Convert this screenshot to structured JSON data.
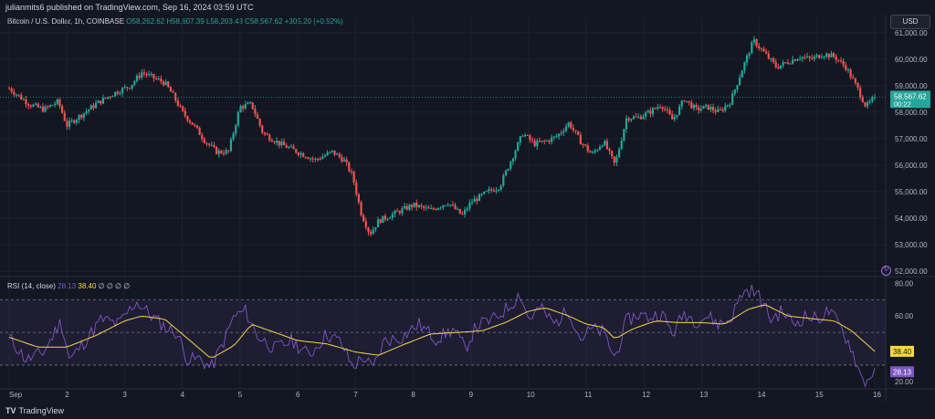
{
  "header": {
    "published": "julianmits6 published on TradingView.com, Sep 16, 2024 03:59 UTC",
    "symbol": "Bitcoin / U.S. Dollar, 1h, COINBASE",
    "ohlc": "O58,262.62  H58,607.39  L58,203.43  C58,567.62  +305.20 (+0.52%)",
    "currency_button": "USD"
  },
  "rsi": {
    "label": "RSI (14, close)",
    "rsi_value": "28.13",
    "ma_value": "38.40",
    "icons": "∅ ∅ ∅ ∅"
  },
  "footer": {
    "brand": "TradingView",
    "brand_icon": "tv-logo-icon"
  },
  "colors": {
    "up": "#26a69a",
    "down": "#ef5350",
    "background": "#131722",
    "rsi_line": "#7e57c2",
    "rsi_ma": "#f7d64a",
    "grid": "#1e222d"
  },
  "chart_data": [
    {
      "type": "candlestick",
      "title": "Bitcoin / U.S. Dollar, 1h, COINBASE",
      "x_tick_labels": [
        "Sep",
        "2",
        "3",
        "4",
        "5",
        "6",
        "7",
        "8",
        "9",
        "10",
        "11",
        "12",
        "13",
        "14",
        "15",
        "16"
      ],
      "y_tick_labels": [
        "61,000.00",
        "60,000.00",
        "59,000.00",
        "58,000.00",
        "57,000.00",
        "56,000.00",
        "55,000.00",
        "54,000.00",
        "53,000.00",
        "52,000.00"
      ],
      "ylim": [
        51900,
        61200
      ],
      "last_price_label": "58,567.62",
      "countdown_label": "00:22",
      "last_price": 58567.62,
      "close_path": [
        {
          "day": 0.0,
          "price": 58900
        },
        {
          "day": 0.35,
          "price": 58300
        },
        {
          "day": 0.6,
          "price": 58100
        },
        {
          "day": 0.85,
          "price": 58400
        },
        {
          "day": 1.0,
          "price": 57500
        },
        {
          "day": 1.25,
          "price": 57900
        },
        {
          "day": 1.5,
          "price": 58300
        },
        {
          "day": 1.8,
          "price": 58700
        },
        {
          "day": 2.1,
          "price": 59000
        },
        {
          "day": 2.3,
          "price": 59500
        },
        {
          "day": 2.5,
          "price": 59300
        },
        {
          "day": 2.7,
          "price": 59100
        },
        {
          "day": 2.85,
          "price": 58600
        },
        {
          "day": 3.0,
          "price": 58000
        },
        {
          "day": 3.2,
          "price": 57500
        },
        {
          "day": 3.4,
          "price": 56900
        },
        {
          "day": 3.6,
          "price": 56500
        },
        {
          "day": 3.8,
          "price": 56500
        },
        {
          "day": 4.0,
          "price": 58200
        },
        {
          "day": 4.2,
          "price": 58300
        },
        {
          "day": 4.4,
          "price": 57200
        },
        {
          "day": 4.7,
          "price": 56800
        },
        {
          "day": 5.0,
          "price": 56500
        },
        {
          "day": 5.3,
          "price": 56200
        },
        {
          "day": 5.6,
          "price": 56500
        },
        {
          "day": 5.8,
          "price": 56200
        },
        {
          "day": 5.95,
          "price": 55600
        },
        {
          "day": 6.1,
          "price": 54200
        },
        {
          "day": 6.25,
          "price": 53400
        },
        {
          "day": 6.4,
          "price": 53900
        },
        {
          "day": 6.6,
          "price": 54100
        },
        {
          "day": 6.8,
          "price": 54300
        },
        {
          "day": 7.0,
          "price": 54500
        },
        {
          "day": 7.3,
          "price": 54300
        },
        {
          "day": 7.6,
          "price": 54600
        },
        {
          "day": 7.85,
          "price": 54100
        },
        {
          "day": 8.0,
          "price": 54600
        },
        {
          "day": 8.3,
          "price": 55000
        },
        {
          "day": 8.5,
          "price": 55200
        },
        {
          "day": 8.7,
          "price": 56200
        },
        {
          "day": 8.9,
          "price": 57200
        },
        {
          "day": 9.1,
          "price": 56800
        },
        {
          "day": 9.3,
          "price": 56900
        },
        {
          "day": 9.5,
          "price": 57100
        },
        {
          "day": 9.7,
          "price": 57600
        },
        {
          "day": 9.9,
          "price": 56900
        },
        {
          "day": 10.1,
          "price": 56400
        },
        {
          "day": 10.3,
          "price": 56900
        },
        {
          "day": 10.5,
          "price": 56000
        },
        {
          "day": 10.7,
          "price": 57800
        },
        {
          "day": 10.9,
          "price": 57800
        },
        {
          "day": 11.1,
          "price": 58000
        },
        {
          "day": 11.3,
          "price": 58300
        },
        {
          "day": 11.5,
          "price": 57700
        },
        {
          "day": 11.7,
          "price": 58500
        },
        {
          "day": 11.9,
          "price": 58100
        },
        {
          "day": 12.1,
          "price": 58200
        },
        {
          "day": 12.3,
          "price": 58000
        },
        {
          "day": 12.5,
          "price": 58400
        },
        {
          "day": 12.7,
          "price": 59600
        },
        {
          "day": 12.9,
          "price": 60700
        },
        {
          "day": 13.1,
          "price": 60200
        },
        {
          "day": 13.3,
          "price": 59700
        },
        {
          "day": 13.5,
          "price": 59900
        },
        {
          "day": 13.7,
          "price": 60100
        },
        {
          "day": 13.9,
          "price": 60000
        },
        {
          "day": 14.1,
          "price": 60200
        },
        {
          "day": 14.3,
          "price": 60100
        },
        {
          "day": 14.5,
          "price": 59700
        },
        {
          "day": 14.7,
          "price": 58900
        },
        {
          "day": 14.85,
          "price": 58200
        },
        {
          "day": 15.0,
          "price": 58567.62
        }
      ]
    },
    {
      "type": "line",
      "title": "RSI (14, close)",
      "y_tick_labels": [
        "80.00",
        "60.00",
        "40.00",
        "20.00"
      ],
      "ylim": [
        16,
        83
      ],
      "upper_band": 70,
      "middle_band": 50,
      "lower_band": 30,
      "series": [
        {
          "name": "RSI",
          "points": [
            {
              "day": 0.0,
              "value": 47
            },
            {
              "day": 0.3,
              "value": 33
            },
            {
              "day": 0.6,
              "value": 38
            },
            {
              "day": 0.9,
              "value": 57
            },
            {
              "day": 1.05,
              "value": 33
            },
            {
              "day": 1.3,
              "value": 44
            },
            {
              "day": 1.6,
              "value": 58
            },
            {
              "day": 1.9,
              "value": 55
            },
            {
              "day": 2.2,
              "value": 69
            },
            {
              "day": 2.5,
              "value": 59
            },
            {
              "day": 2.75,
              "value": 52
            },
            {
              "day": 2.9,
              "value": 50
            },
            {
              "day": 3.1,
              "value": 33
            },
            {
              "day": 3.3,
              "value": 34
            },
            {
              "day": 3.5,
              "value": 28
            },
            {
              "day": 3.7,
              "value": 43
            },
            {
              "day": 3.9,
              "value": 60
            },
            {
              "day": 4.1,
              "value": 63
            },
            {
              "day": 4.3,
              "value": 48
            },
            {
              "day": 4.6,
              "value": 40
            },
            {
              "day": 4.9,
              "value": 45
            },
            {
              "day": 5.2,
              "value": 36
            },
            {
              "day": 5.5,
              "value": 49
            },
            {
              "day": 5.75,
              "value": 44
            },
            {
              "day": 5.95,
              "value": 29
            },
            {
              "day": 6.15,
              "value": 35
            },
            {
              "day": 6.3,
              "value": 27
            },
            {
              "day": 6.5,
              "value": 45
            },
            {
              "day": 6.8,
              "value": 47
            },
            {
              "day": 7.1,
              "value": 55
            },
            {
              "day": 7.4,
              "value": 46
            },
            {
              "day": 7.7,
              "value": 52
            },
            {
              "day": 7.9,
              "value": 40
            },
            {
              "day": 8.1,
              "value": 54
            },
            {
              "day": 8.4,
              "value": 58
            },
            {
              "day": 8.7,
              "value": 67
            },
            {
              "day": 8.85,
              "value": 74
            },
            {
              "day": 9.0,
              "value": 58
            },
            {
              "day": 9.2,
              "value": 65
            },
            {
              "day": 9.45,
              "value": 55
            },
            {
              "day": 9.7,
              "value": 64
            },
            {
              "day": 9.9,
              "value": 46
            },
            {
              "day": 10.1,
              "value": 52
            },
            {
              "day": 10.3,
              "value": 50
            },
            {
              "day": 10.5,
              "value": 34
            },
            {
              "day": 10.7,
              "value": 57
            },
            {
              "day": 10.9,
              "value": 61
            },
            {
              "day": 11.1,
              "value": 59
            },
            {
              "day": 11.3,
              "value": 62
            },
            {
              "day": 11.5,
              "value": 49
            },
            {
              "day": 11.7,
              "value": 62
            },
            {
              "day": 11.9,
              "value": 57
            },
            {
              "day": 12.1,
              "value": 60
            },
            {
              "day": 12.3,
              "value": 55
            },
            {
              "day": 12.5,
              "value": 58
            },
            {
              "day": 12.7,
              "value": 74
            },
            {
              "day": 12.85,
              "value": 76
            },
            {
              "day": 13.0,
              "value": 72
            },
            {
              "day": 13.2,
              "value": 58
            },
            {
              "day": 13.4,
              "value": 63
            },
            {
              "day": 13.6,
              "value": 55
            },
            {
              "day": 13.8,
              "value": 60
            },
            {
              "day": 14.0,
              "value": 58
            },
            {
              "day": 14.2,
              "value": 63
            },
            {
              "day": 14.4,
              "value": 54
            },
            {
              "day": 14.6,
              "value": 40
            },
            {
              "day": 14.75,
              "value": 24
            },
            {
              "day": 14.85,
              "value": 19
            },
            {
              "day": 15.0,
              "value": 28.13
            }
          ]
        },
        {
          "name": "RSI-based MA",
          "points": [
            {
              "day": 0.0,
              "value": 47
            },
            {
              "day": 0.5,
              "value": 41
            },
            {
              "day": 1.0,
              "value": 41
            },
            {
              "day": 1.5,
              "value": 48
            },
            {
              "day": 2.0,
              "value": 57
            },
            {
              "day": 2.3,
              "value": 60
            },
            {
              "day": 2.7,
              "value": 58
            },
            {
              "day": 3.0,
              "value": 49
            },
            {
              "day": 3.5,
              "value": 34
            },
            {
              "day": 3.9,
              "value": 42
            },
            {
              "day": 4.2,
              "value": 55
            },
            {
              "day": 4.6,
              "value": 50
            },
            {
              "day": 5.0,
              "value": 45
            },
            {
              "day": 5.5,
              "value": 43
            },
            {
              "day": 6.0,
              "value": 38
            },
            {
              "day": 6.4,
              "value": 36
            },
            {
              "day": 6.8,
              "value": 42
            },
            {
              "day": 7.3,
              "value": 49
            },
            {
              "day": 7.8,
              "value": 50
            },
            {
              "day": 8.2,
              "value": 51
            },
            {
              "day": 8.6,
              "value": 56
            },
            {
              "day": 9.0,
              "value": 63
            },
            {
              "day": 9.3,
              "value": 65
            },
            {
              "day": 9.7,
              "value": 60
            },
            {
              "day": 10.0,
              "value": 55
            },
            {
              "day": 10.3,
              "value": 53
            },
            {
              "day": 10.5,
              "value": 46
            },
            {
              "day": 10.8,
              "value": 52
            },
            {
              "day": 11.2,
              "value": 57
            },
            {
              "day": 11.6,
              "value": 56
            },
            {
              "day": 12.0,
              "value": 56
            },
            {
              "day": 12.4,
              "value": 55
            },
            {
              "day": 12.8,
              "value": 64
            },
            {
              "day": 13.1,
              "value": 67
            },
            {
              "day": 13.5,
              "value": 60
            },
            {
              "day": 14.0,
              "value": 58
            },
            {
              "day": 14.3,
              "value": 57
            },
            {
              "day": 14.6,
              "value": 51
            },
            {
              "day": 15.0,
              "value": 38.4
            }
          ]
        }
      ]
    }
  ]
}
